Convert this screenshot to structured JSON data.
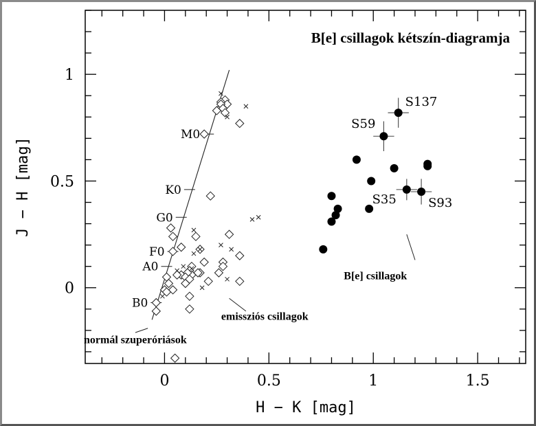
{
  "chart_data": {
    "type": "scatter",
    "title": "B[e] csillagok kétszín-diagramja",
    "xlabel": "H − K [mag]",
    "ylabel": "J − H [mag]",
    "xlim": [
      -0.38,
      1.73
    ],
    "ylim": [
      -0.355,
      1.3
    ],
    "x_ticks": [
      {
        "value": 0,
        "label": "0"
      },
      {
        "value": 0.5,
        "label": "0.5"
      },
      {
        "value": 1,
        "label": "1"
      },
      {
        "value": 1.5,
        "label": "1.5"
      }
    ],
    "y_ticks": [
      {
        "value": 0,
        "label": "0"
      },
      {
        "value": 0.5,
        "label": "0.5"
      },
      {
        "value": 1,
        "label": "1"
      }
    ],
    "minor_tick_step": 0.1,
    "grid": false,
    "series": [
      {
        "marker": "diamond",
        "points": [
          [
            0.29,
            0.88
          ],
          [
            0.27,
            0.87
          ],
          [
            0.3,
            0.86
          ],
          [
            0.27,
            0.86
          ],
          [
            0.28,
            0.84
          ],
          [
            0.25,
            0.83
          ],
          [
            0.29,
            0.82
          ],
          [
            0.36,
            0.77
          ],
          [
            0.19,
            0.72
          ],
          [
            0.22,
            0.43
          ],
          [
            0.03,
            0.28
          ],
          [
            0.04,
            0.24
          ],
          [
            0.08,
            0.19
          ],
          [
            0.04,
            0.17
          ],
          [
            0.15,
            0.24
          ],
          [
            0.17,
            0.18
          ],
          [
            0.31,
            0.25
          ],
          [
            0.36,
            0.15
          ],
          [
            0.19,
            0.12
          ],
          [
            0.28,
            0.12
          ],
          [
            0.28,
            0.1
          ],
          [
            0.26,
            0.07
          ],
          [
            0.36,
            0.03
          ],
          [
            0.17,
            0.07
          ],
          [
            0.13,
            0.1
          ],
          [
            0.12,
            0.08
          ],
          [
            0.13,
            0.06
          ],
          [
            0.16,
            0.07
          ],
          [
            0.11,
            0.07
          ],
          [
            0.08,
            0.06
          ],
          [
            0.06,
            0.06
          ],
          [
            0.01,
            0.05
          ],
          [
            0.02,
            0.02
          ],
          [
            0.1,
            0.05
          ],
          [
            0.1,
            0.02
          ],
          [
            0.12,
            0.04
          ],
          [
            0.21,
            0.03
          ],
          [
            0.0,
            -0.01
          ],
          [
            0.01,
            -0.02
          ],
          [
            0.04,
            -0.01
          ],
          [
            0.12,
            -0.04
          ],
          [
            0.12,
            -0.1
          ],
          [
            -0.04,
            -0.07
          ],
          [
            -0.04,
            -0.11
          ],
          [
            0.05,
            -0.33
          ]
        ]
      },
      {
        "marker": "cross",
        "points": [
          [
            0.27,
            0.91
          ],
          [
            0.39,
            0.85
          ],
          [
            0.3,
            0.8
          ],
          [
            0.42,
            0.32
          ],
          [
            0.45,
            0.33
          ],
          [
            0.14,
            0.27
          ],
          [
            0.27,
            0.2
          ],
          [
            0.32,
            0.18
          ],
          [
            0.14,
            0.16
          ],
          [
            0.17,
            0.18
          ],
          [
            0.09,
            0.1
          ],
          [
            0.06,
            0.08
          ],
          [
            0.3,
            0.04
          ],
          [
            0.18,
            0.0
          ],
          [
            -0.01,
            -0.04
          ],
          [
            0.13,
            0.09
          ]
        ]
      },
      {
        "marker": "filled-circle",
        "points": [
          [
            1.12,
            0.82
          ],
          [
            1.05,
            0.71
          ],
          [
            0.92,
            0.6
          ],
          [
            1.1,
            0.56
          ],
          [
            0.99,
            0.5
          ],
          [
            1.26,
            0.58
          ],
          [
            1.26,
            0.57
          ],
          [
            1.16,
            0.46
          ],
          [
            1.23,
            0.45
          ],
          [
            0.8,
            0.43
          ],
          [
            0.83,
            0.37
          ],
          [
            0.82,
            0.34
          ],
          [
            0.8,
            0.31
          ],
          [
            0.98,
            0.37
          ],
          [
            0.76,
            0.18
          ]
        ]
      }
    ],
    "error_bars": [
      {
        "label": "S137",
        "x": 1.12,
        "y": 0.82,
        "xerr": 0.05,
        "yerr": 0.07
      },
      {
        "label": "S59",
        "x": 1.05,
        "y": 0.71,
        "xerr": 0.05,
        "yerr": 0.07
      },
      {
        "label": "S35",
        "x": 1.16,
        "y": 0.46,
        "xerr": 0.05,
        "yerr": 0.05
      },
      {
        "label": "S93",
        "x": 1.23,
        "y": 0.45,
        "xerr": 0.05,
        "yerr": 0.06
      }
    ],
    "sequence_line": [
      [
        -0.06,
        -0.15
      ],
      [
        0.31,
        1.02
      ]
    ],
    "spectral_marks": [
      {
        "label": "B0",
        "x": -0.04,
        "y": -0.07
      },
      {
        "label": "A0",
        "x": 0.01,
        "y": 0.1
      },
      {
        "label": "F0",
        "x": 0.04,
        "y": 0.17
      },
      {
        "label": "G0",
        "x": 0.08,
        "y": 0.33
      },
      {
        "label": "K0",
        "x": 0.12,
        "y": 0.46
      },
      {
        "label": "M0",
        "x": 0.21,
        "y": 0.72
      }
    ],
    "annotations": [
      {
        "text": "normál szuperóriások",
        "x": -0.14,
        "y": -0.26,
        "pointer": [
          [
            -0.14,
            -0.21
          ],
          [
            -0.08,
            -0.19
          ]
        ]
      },
      {
        "text": "emissziós csillagok",
        "x": 0.48,
        "y": -0.15,
        "pointer": [
          [
            0.31,
            -0.05
          ],
          [
            0.39,
            -0.11
          ]
        ]
      },
      {
        "text": "B[e] csillagok",
        "x": 1.01,
        "y": 0.04,
        "pointer": [
          [
            1.16,
            0.25
          ],
          [
            1.2,
            0.13
          ]
        ]
      }
    ]
  }
}
